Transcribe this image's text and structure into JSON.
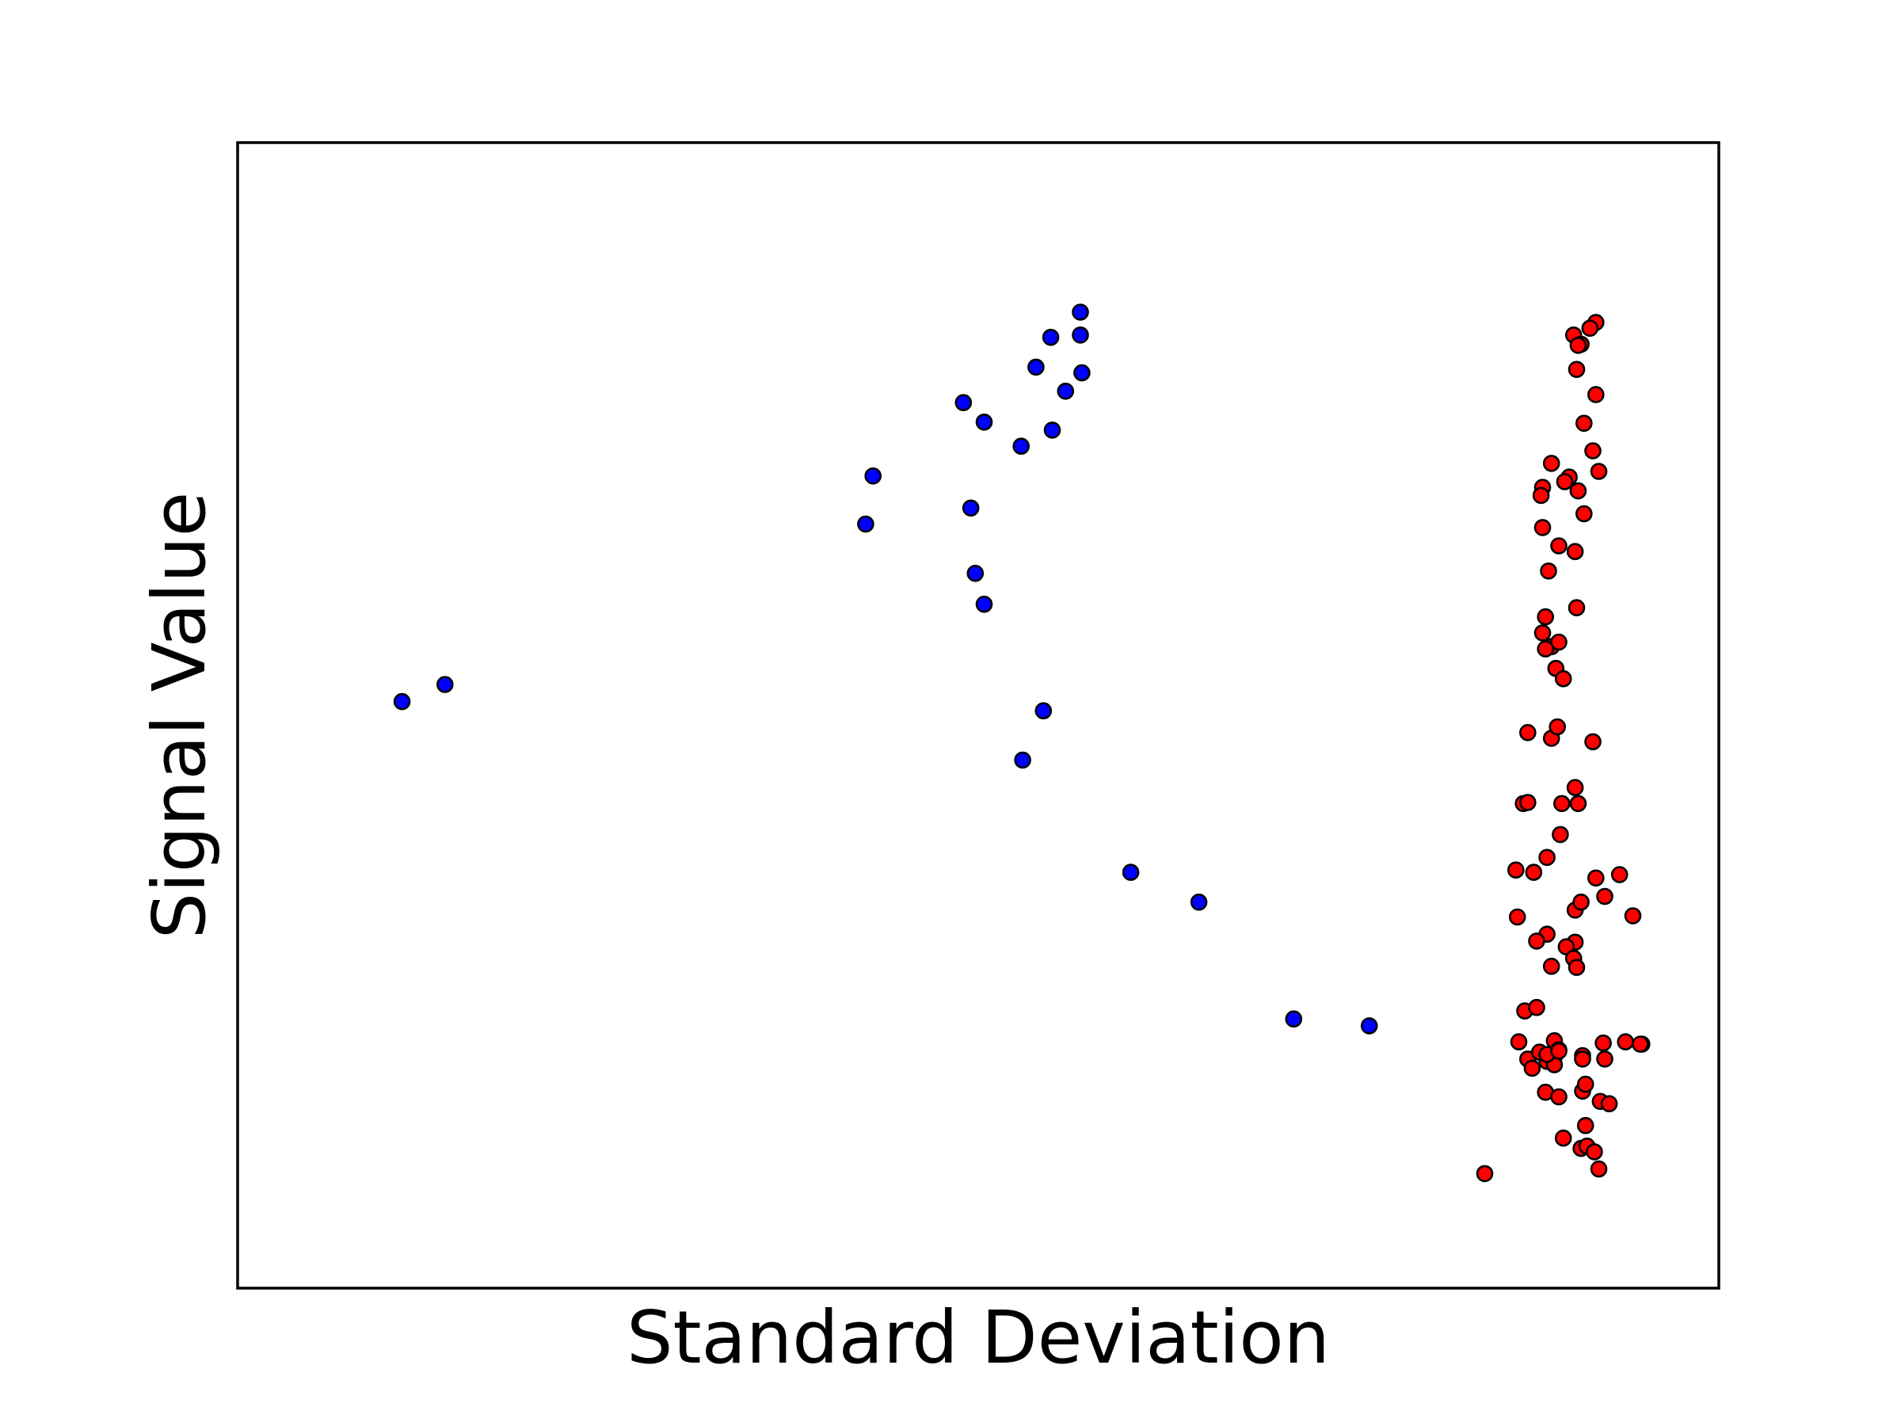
{
  "chart_data": {
    "type": "scatter",
    "title": "",
    "xlabel": "Standard Deviation",
    "ylabel": "Signal Value",
    "xlim": [
      0,
      100
    ],
    "ylim": [
      0,
      100
    ],
    "grid": false,
    "legend": "none",
    "ticks": false,
    "series": [
      {
        "color": "#0000ff",
        "points": [
          [
            11.1,
            51.2
          ],
          [
            14.0,
            52.7
          ],
          [
            42.4,
            66.7
          ],
          [
            42.9,
            70.9
          ],
          [
            49.0,
            77.3
          ],
          [
            49.5,
            68.1
          ],
          [
            49.8,
            62.4
          ],
          [
            50.4,
            75.6
          ],
          [
            50.4,
            59.7
          ],
          [
            52.9,
            73.5
          ],
          [
            53.9,
            80.4
          ],
          [
            53.0,
            46.1
          ],
          [
            54.9,
            83.0
          ],
          [
            55.0,
            74.9
          ],
          [
            54.4,
            50.4
          ],
          [
            55.9,
            78.3
          ],
          [
            56.9,
            83.2
          ],
          [
            56.9,
            85.2
          ],
          [
            57.0,
            79.9
          ],
          [
            60.3,
            36.3
          ],
          [
            64.9,
            33.7
          ],
          [
            71.3,
            23.5
          ],
          [
            76.4,
            22.9
          ]
        ]
      },
      {
        "color": "#ff0000",
        "points": [
          [
            91.7,
            84.3
          ],
          [
            90.2,
            83.2
          ],
          [
            90.7,
            82.4
          ],
          [
            91.3,
            83.8
          ],
          [
            90.4,
            80.2
          ],
          [
            91.5,
            73.1
          ],
          [
            91.9,
            71.3
          ],
          [
            90.9,
            75.5
          ],
          [
            91.7,
            78.0
          ],
          [
            90.5,
            82.3
          ],
          [
            88.7,
            72.0
          ],
          [
            89.9,
            70.8
          ],
          [
            88.1,
            69.9
          ],
          [
            89.6,
            70.4
          ],
          [
            90.5,
            69.6
          ],
          [
            88.0,
            69.2
          ],
          [
            90.9,
            67.6
          ],
          [
            88.1,
            66.4
          ],
          [
            89.2,
            64.8
          ],
          [
            90.3,
            64.3
          ],
          [
            88.5,
            62.6
          ],
          [
            88.3,
            58.6
          ],
          [
            90.4,
            59.4
          ],
          [
            88.1,
            57.2
          ],
          [
            88.7,
            56.0
          ],
          [
            89.2,
            56.4
          ],
          [
            88.3,
            55.8
          ],
          [
            89.0,
            54.1
          ],
          [
            89.5,
            53.2
          ],
          [
            87.1,
            48.5
          ],
          [
            88.7,
            48.0
          ],
          [
            89.1,
            49.0
          ],
          [
            91.5,
            47.7
          ],
          [
            86.8,
            42.3
          ],
          [
            87.1,
            42.4
          ],
          [
            89.4,
            42.3
          ],
          [
            90.5,
            42.3
          ],
          [
            90.3,
            43.7
          ],
          [
            89.3,
            39.6
          ],
          [
            88.4,
            37.6
          ],
          [
            86.3,
            36.5
          ],
          [
            87.5,
            36.3
          ],
          [
            91.7,
            35.8
          ],
          [
            93.3,
            36.1
          ],
          [
            92.3,
            34.2
          ],
          [
            90.3,
            33.0
          ],
          [
            90.7,
            33.7
          ],
          [
            94.2,
            32.5
          ],
          [
            86.4,
            32.4
          ],
          [
            88.4,
            30.9
          ],
          [
            87.7,
            30.3
          ],
          [
            90.3,
            30.2
          ],
          [
            89.7,
            29.8
          ],
          [
            88.7,
            28.1
          ],
          [
            90.2,
            28.8
          ],
          [
            90.4,
            28.0
          ],
          [
            88.9,
            20.2
          ],
          [
            88.3,
            17.1
          ],
          [
            90.8,
            17.2
          ],
          [
            91.0,
            17.8
          ],
          [
            86.9,
            24.2
          ],
          [
            87.7,
            24.5
          ],
          [
            88.9,
            21.6
          ],
          [
            89.2,
            20.8
          ],
          [
            88.4,
            19.8
          ],
          [
            88.9,
            19.5
          ],
          [
            87.1,
            20.0
          ],
          [
            86.5,
            21.5
          ],
          [
            87.9,
            20.6
          ],
          [
            88.4,
            20.4
          ],
          [
            89.2,
            20.7
          ],
          [
            90.8,
            20.3
          ],
          [
            90.8,
            20.0
          ],
          [
            92.3,
            20.0
          ],
          [
            93.7,
            21.5
          ],
          [
            94.8,
            21.3
          ],
          [
            94.7,
            21.3
          ],
          [
            92.2,
            21.4
          ],
          [
            87.4,
            19.2
          ],
          [
            89.2,
            16.7
          ],
          [
            92.0,
            16.3
          ],
          [
            92.6,
            16.1
          ],
          [
            89.5,
            13.1
          ],
          [
            90.7,
            12.2
          ],
          [
            91.1,
            12.4
          ],
          [
            91.6,
            11.9
          ],
          [
            91.0,
            14.2
          ],
          [
            91.9,
            10.4
          ],
          [
            84.2,
            10.0
          ]
        ]
      }
    ]
  }
}
